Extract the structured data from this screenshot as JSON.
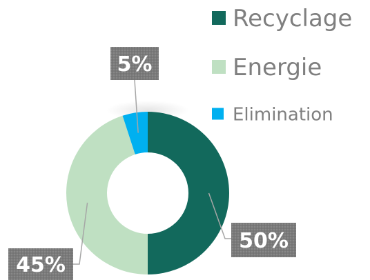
{
  "chart_data": {
    "type": "pie",
    "variant": "donut",
    "title": "",
    "categories": [
      "Recyclage",
      "Energie",
      "Elimination"
    ],
    "values": [
      50,
      45,
      5
    ],
    "value_labels": [
      "50%",
      "45%",
      "5%"
    ],
    "colors": [
      "#12695c",
      "#bfe0c2",
      "#00b0f0"
    ],
    "legend": {
      "placement": "top-right",
      "entries": [
        "Recyclage",
        "Energie",
        "Elimination"
      ]
    }
  }
}
